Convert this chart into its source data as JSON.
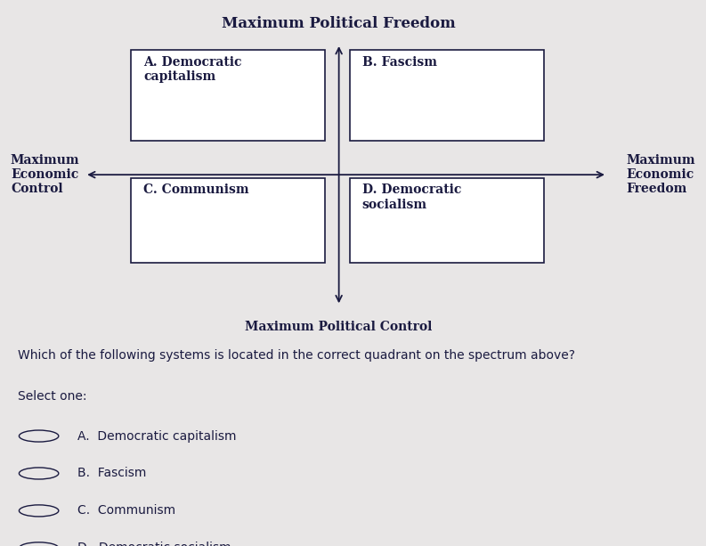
{
  "bg_color": "#e8e6e6",
  "diagram_bg": "#e8e6e6",
  "bottom_section_bg": "#e0dede",
  "title": "Maximum Political Freedom",
  "bottom_label": "Maximum Political Control",
  "left_label": "Maximum\nEconomic\nControl",
  "right_label": "Maximum\nEconomic\nFreedom",
  "quadrant_labels": {
    "A": "A. Democratic\ncapitalism",
    "B": "B. Fascism",
    "C": "C. Communism",
    "D": "D. Democratic\nsocialism"
  },
  "question": "Which of the following systems is located in the correct quadrant on the spectrum above?",
  "select_one": "Select one:",
  "options": [
    "A.  Democratic capitalism",
    "B.  Fascism",
    "C.  Communism",
    "D.  Democratic socialism"
  ],
  "box_color": "#ffffff",
  "box_edge_color": "#1a1a40",
  "text_color": "#1a1a40",
  "axis_color": "#1a1a40",
  "font_size_title": 12,
  "font_size_axis_labels": 10,
  "font_size_quadrant": 10,
  "font_size_question": 10,
  "font_size_options": 10
}
